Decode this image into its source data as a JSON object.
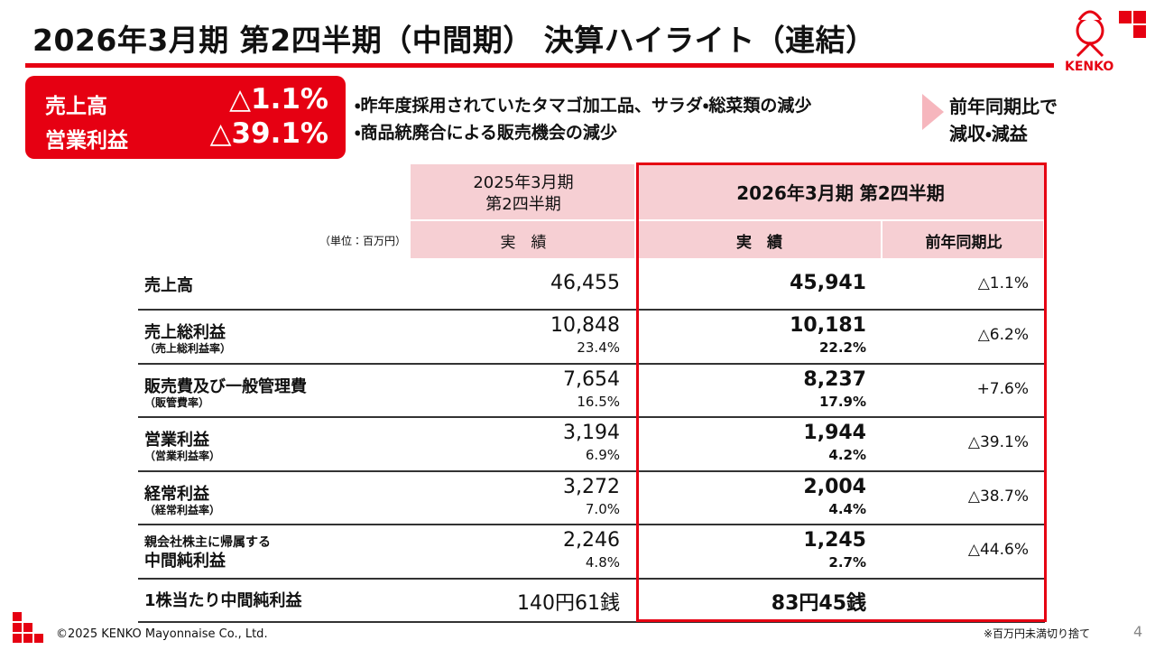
{
  "header": {
    "title": "2026年3月期 第2四半期（中間期） 決算ハイライト（連結）",
    "logo": "KENKO"
  },
  "highlight": [
    {
      "label": "売上高",
      "value": "△1.1%"
    },
    {
      "label": "営業利益",
      "value": "△39.1%"
    }
  ],
  "reasons": [
    "・昨年度採用されていたタマゴ加工品、サラダ・総菜類の減少",
    "・商品統廃合による販売機会の減少"
  ],
  "conclusion": [
    "前年同期比で",
    "減収・減益"
  ],
  "table": {
    "unit": "（単位：百万円）",
    "prev_header": [
      "2025年3月期",
      "第2四半期"
    ],
    "curr_header": "2026年3月期 第2四半期",
    "subheaders": [
      "実　績",
      "実　績",
      "前年同期比"
    ],
    "rows": [
      {
        "label": "売上高",
        "prev": "46,455",
        "curr": "45,941",
        "yoy": "△1.1%"
      },
      {
        "label": "売上総利益",
        "sublabel": "（売上総利益率）",
        "prev": "10,848",
        "prev_rate": "23.4%",
        "curr": "10,181",
        "curr_rate": "22.2%",
        "yoy": "△6.2%"
      },
      {
        "label": "販売費及び一般管理費",
        "sublabel": "（販管費率）",
        "prev": "7,654",
        "prev_rate": "16.5%",
        "curr": "8,237",
        "curr_rate": "17.9%",
        "yoy": "+7.6%"
      },
      {
        "label": "営業利益",
        "sublabel": "（営業利益率）",
        "prev": "3,194",
        "prev_rate": "6.9%",
        "curr": "1,944",
        "curr_rate": "4.2%",
        "yoy": "△39.1%"
      },
      {
        "label": "経常利益",
        "sublabel": "（経常利益率）",
        "prev": "3,272",
        "prev_rate": "7.0%",
        "curr": "2,004",
        "curr_rate": "4.4%",
        "yoy": "△38.7%"
      },
      {
        "prefix": "親会社株主に帰属する",
        "label": "中間純利益",
        "prev": "2,246",
        "prev_rate": "4.8%",
        "curr": "1,245",
        "curr_rate": "2.7%",
        "yoy": "△44.6%"
      },
      {
        "label": "1株当たり中間純利益",
        "prev": "140円61銭",
        "curr": "83円45銭"
      }
    ]
  },
  "footer": {
    "copyright": "©2025 KENKO Mayonnaise Co., Ltd.",
    "note": "※百万円未満切り捨て",
    "page": "4"
  }
}
